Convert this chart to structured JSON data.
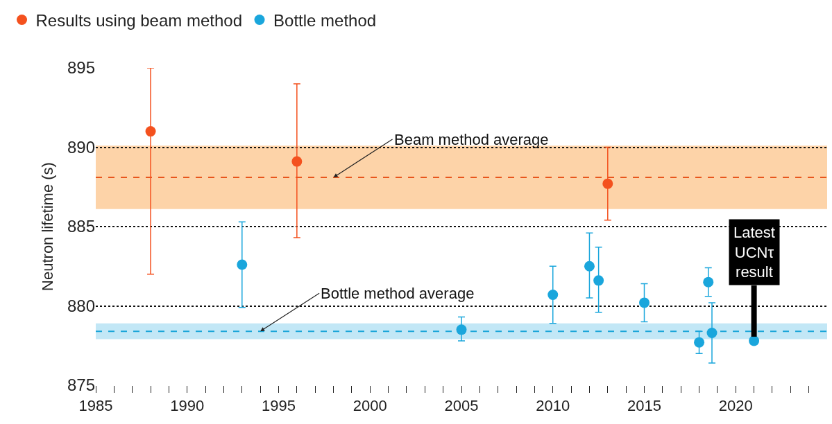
{
  "chart_data": {
    "type": "scatter",
    "ylabel": "Neutron lifetime (s)",
    "series": [
      {
        "name": "Results using beam method",
        "color": "#f4511e",
        "x": [
          1988,
          1996,
          2013
        ],
        "values": [
          891.0,
          889.1,
          887.7
        ],
        "errors": [
          [
            882.0,
            895.0
          ],
          [
            884.3,
            894.0
          ],
          [
            885.4,
            890.0
          ]
        ]
      },
      {
        "name": "Bottle method",
        "color": "#1aa6dc",
        "x": [
          1993,
          2005,
          2010,
          2012,
          2012.5,
          2015,
          2018,
          2018.5,
          2018.7,
          2021
        ],
        "values": [
          882.6,
          878.5,
          880.7,
          882.5,
          881.6,
          880.2,
          877.7,
          881.5,
          878.3,
          877.8
        ],
        "errors": [
          [
            879.9,
            885.3
          ],
          [
            877.8,
            879.3
          ],
          [
            878.9,
            882.5
          ],
          [
            880.5,
            884.6
          ],
          [
            879.6,
            883.7
          ],
          [
            879.0,
            881.4
          ],
          [
            877.0,
            878.4
          ],
          [
            880.6,
            882.4
          ],
          [
            876.4,
            880.2
          ],
          null
        ]
      }
    ],
    "xlim": [
      1985,
      2025
    ],
    "xticks": [
      1985,
      {
        "value": 1986,
        "label": null
      },
      {
        "value": 1987,
        "label": null
      },
      {
        "value": 1988,
        "label": null
      },
      {
        "value": 1989,
        "label": null
      },
      1990,
      {
        "value": 1991,
        "label": null
      },
      {
        "value": 1992,
        "label": null
      },
      {
        "value": 1993,
        "label": null
      },
      {
        "value": 1994,
        "label": null
      },
      1995,
      {
        "value": 1996,
        "label": null
      },
      {
        "value": 1997,
        "label": null
      },
      {
        "value": 1998,
        "label": null
      },
      {
        "value": 1999,
        "label": null
      },
      2000,
      {
        "value": 2001,
        "label": null
      },
      {
        "value": 2002,
        "label": null
      },
      {
        "value": 2003,
        "label": null
      },
      {
        "value": 2004,
        "label": null
      },
      2005,
      {
        "value": 2006,
        "label": null
      },
      {
        "value": 2007,
        "label": null
      },
      {
        "value": 2008,
        "label": null
      },
      {
        "value": 2009,
        "label": null
      },
      2010,
      {
        "value": 2011,
        "label": null
      },
      {
        "value": 2012,
        "label": null
      },
      {
        "value": 2013,
        "label": null
      },
      {
        "value": 2014,
        "label": null
      },
      2015,
      {
        "value": 2016,
        "label": null
      },
      {
        "value": 2017,
        "label": null
      },
      {
        "value": 2018,
        "label": null
      },
      {
        "value": 2019,
        "label": null
      },
      2020,
      {
        "value": 2021,
        "label": null
      },
      {
        "value": 2022,
        "label": null
      },
      {
        "value": 2023,
        "label": null
      },
      {
        "value": 2024,
        "label": null
      }
    ],
    "ylim": [
      875,
      895
    ],
    "yticks": [
      875,
      880,
      885,
      890,
      895
    ],
    "grid": "y",
    "legend": "top left",
    "marker": "circle",
    "bands": [
      {
        "axis": "y",
        "from": 886.1,
        "to": 890.1,
        "color": "#fdd3a8"
      },
      {
        "axis": "y",
        "from": 877.9,
        "to": 878.9,
        "color": "#c2e7f6"
      }
    ],
    "ref_lines": [
      {
        "axis": "y",
        "value": 888.1,
        "color": "#e8561e",
        "line_style": "dashed"
      },
      {
        "axis": "y",
        "value": 878.4,
        "color": "#1ba6d9",
        "line_style": "dashed"
      }
    ],
    "annotations": [
      {
        "text": "Beam method average",
        "x": 1998,
        "y": 888.1
      },
      {
        "text": "Bottle method average",
        "x": 1994,
        "y": 878.4
      },
      {
        "text": "Latest UCNτ result",
        "x": 2021,
        "y": 877.8
      }
    ]
  }
}
